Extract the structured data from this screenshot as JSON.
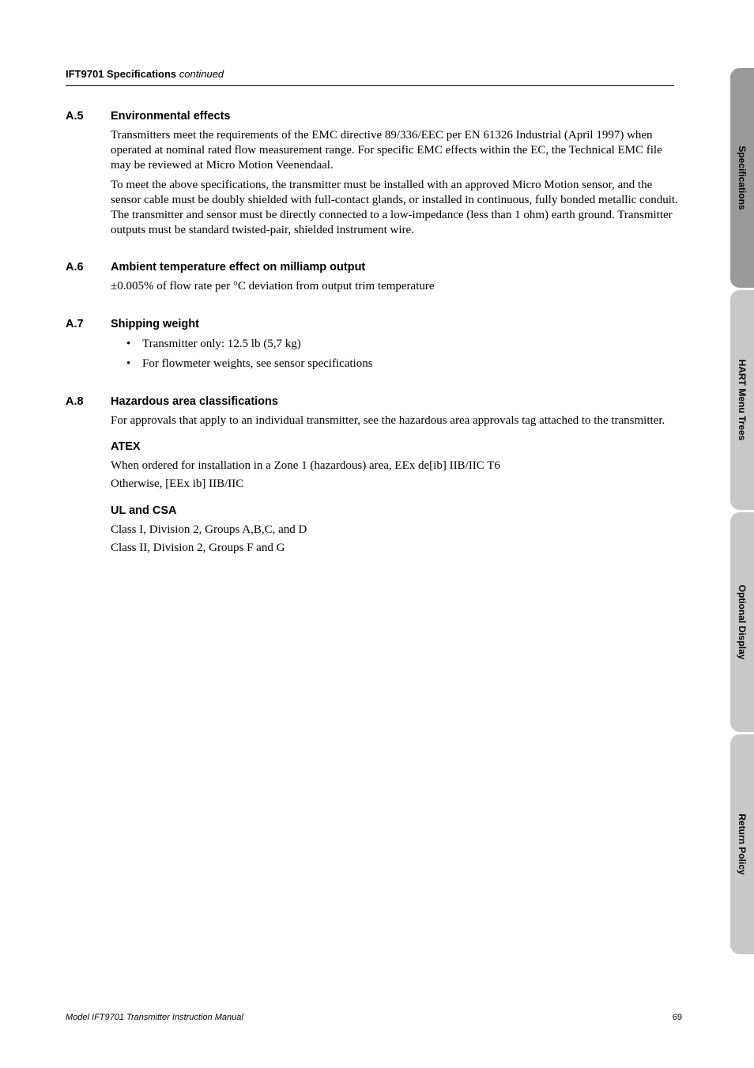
{
  "header": {
    "title": "IFT9701 Specifications",
    "continued": " continued"
  },
  "sections": {
    "a5": {
      "num": "A.5",
      "title": "Environmental effects",
      "para1": "Transmitters meet the requirements of the EMC directive 89/336/EEC per EN 61326 Industrial (April 1997) when operated at nominal rated flow measurement range. For specific EMC effects within the EC, the Technical EMC file may be reviewed at Micro Motion Veenendaal.",
      "para2": "To meet the above specifications, the transmitter must be installed with an approved Micro Motion sensor, and the sensor cable must be doubly shielded with full-contact glands, or installed in continuous, fully bonded metallic conduit. The transmitter and sensor must be directly connected to a low-impedance (less than 1 ohm) earth ground. Transmitter outputs must be standard twisted-pair, shielded instrument wire."
    },
    "a6": {
      "num": "A.6",
      "title": "Ambient temperature effect on milliamp output",
      "para1": "±0.005% of flow rate per °C deviation from output trim temperature"
    },
    "a7": {
      "num": "A.7",
      "title": "Shipping weight",
      "bullets": [
        "Transmitter only: 12.5 lb (5,7 kg)",
        "For flowmeter weights, see sensor specifications"
      ]
    },
    "a8": {
      "num": "A.8",
      "title": "Hazardous area classifications",
      "para1": "For approvals that apply to an individual transmitter, see the hazardous area approvals tag attached to the transmitter.",
      "atex": {
        "heading": "ATEX",
        "line1": "When ordered for installation in a Zone 1 (hazardous) area, EEx de[ib] IIB/IIC T6",
        "line2": "Otherwise, [EEx ib] IIB/IIC"
      },
      "ulcsa": {
        "heading": "UL and CSA",
        "line1": "Class I, Division 2, Groups A,B,C, and D",
        "line2": "Class II, Division 2, Groups F and G"
      }
    }
  },
  "tabs": {
    "t1": "Specifications",
    "t2": "HART Menu Trees",
    "t3": "Optional Display",
    "t4": "Return Policy"
  },
  "footer": {
    "left": "Model IFT9701 Transmitter Instruction Manual",
    "page": "69"
  }
}
